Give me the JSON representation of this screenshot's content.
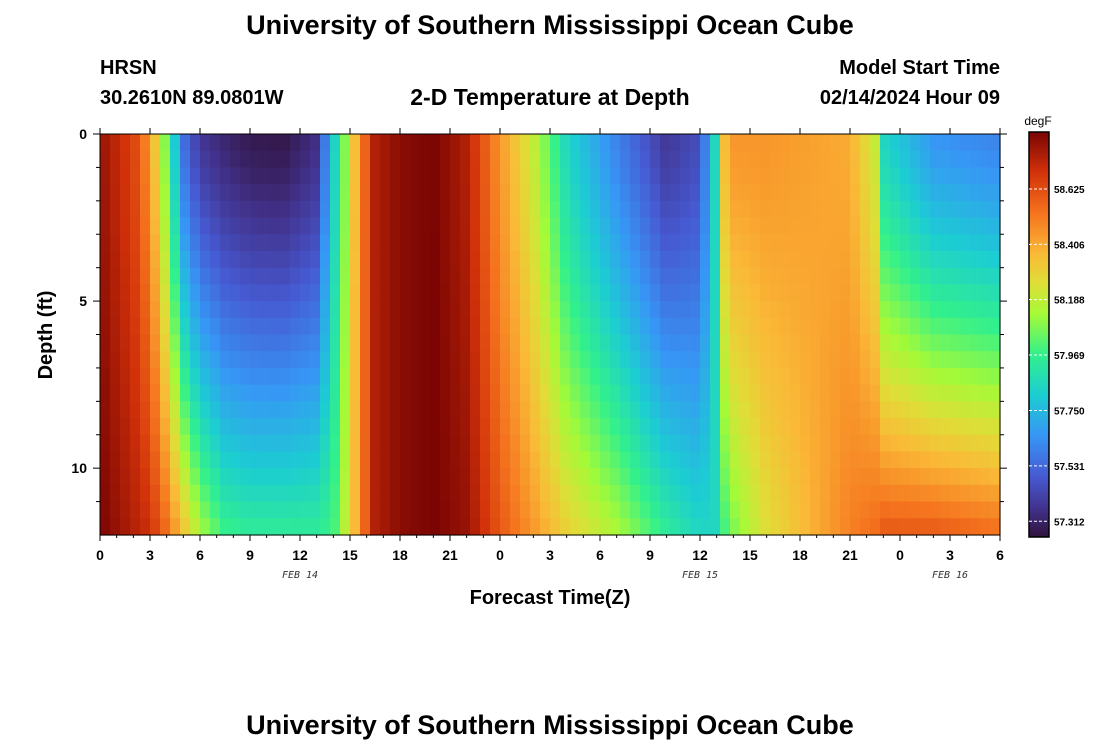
{
  "page": {
    "title_top": "University of Southern Mississippi Ocean Cube",
    "title_bottom": "University of Southern Mississippi Ocean Cube",
    "station": "HRSN",
    "location": "30.2610N  89.0801W",
    "subtitle": "2-D Temperature at Depth",
    "model_start_label": "Model Start Time",
    "model_start_value": "02/14/2024 Hour 09"
  },
  "chart_data": {
    "type": "heatmap",
    "title": "2-D Temperature at Depth",
    "xlabel": "Forecast Time(Z)",
    "ylabel": "Depth (ft)",
    "x_range_hours": [
      0,
      54
    ],
    "y_range_ft": [
      0,
      12
    ],
    "x_tick_labels": [
      "0",
      "3",
      "6",
      "9",
      "12",
      "15",
      "18",
      "21",
      "0",
      "3",
      "6",
      "9",
      "12",
      "15",
      "18",
      "21",
      "0",
      "3",
      "6"
    ],
    "y_tick_labels": [
      "0",
      "5",
      "10"
    ],
    "y_tick_values": [
      0,
      5,
      10
    ],
    "date_labels": [
      {
        "label": "FEB 14",
        "hour": 12
      },
      {
        "label": "FEB 15",
        "hour": 36
      },
      {
        "label": "FEB 16",
        "hour": 51
      }
    ],
    "colorbar": {
      "unit": "degF",
      "tick_values": [
        58.625,
        58.406,
        58.188,
        57.969,
        57.75,
        57.531,
        57.312
      ],
      "tick_labels": [
        "58.625",
        "58.406",
        "58.188",
        "57.969",
        "57.750",
        "57.531",
        "57.312"
      ],
      "range": [
        57.25,
        58.85
      ]
    },
    "time_profile_hours": [
      0,
      2,
      3,
      4,
      5,
      6,
      7.5,
      9,
      11,
      13,
      14,
      15,
      15.5,
      16.5,
      18,
      20,
      22,
      24,
      26,
      28,
      31,
      34,
      36,
      37,
      37.3,
      37.8,
      40,
      45,
      46.5,
      47,
      50,
      54
    ],
    "surface_temp_degF": [
      58.8,
      58.65,
      58.45,
      58.05,
      57.55,
      57.38,
      57.32,
      57.28,
      57.27,
      57.35,
      57.8,
      58.2,
      58.45,
      58.75,
      58.82,
      58.85,
      58.75,
      58.45,
      58.2,
      57.85,
      57.6,
      57.38,
      57.45,
      57.9,
      58.3,
      58.45,
      58.45,
      58.4,
      58.2,
      57.85,
      57.65,
      57.6
    ],
    "bottom_temp_degF": [
      58.85,
      58.75,
      58.7,
      58.55,
      58.35,
      58.15,
      57.98,
      57.95,
      57.95,
      57.95,
      57.98,
      58.25,
      58.45,
      58.75,
      58.82,
      58.85,
      58.8,
      58.6,
      58.45,
      58.3,
      58.15,
      57.95,
      57.85,
      57.85,
      57.95,
      58.05,
      58.25,
      58.5,
      58.55,
      58.6,
      58.6,
      58.55
    ]
  }
}
